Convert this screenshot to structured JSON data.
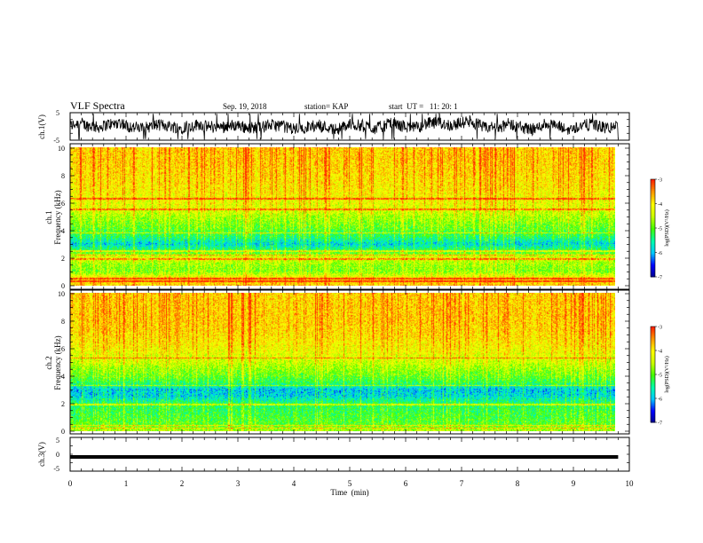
{
  "header": {
    "title": "VLF Spectra",
    "date": "Sep. 19, 2018",
    "station": "station= KAP",
    "start": "start  UT =   11: 20: 1"
  },
  "colors": {
    "background": "#ffffff",
    "axes": "#000000",
    "trace": "#000000",
    "spectrogram_map": [
      "#00008b",
      "#0000ff",
      "#00c8ff",
      "#00ffaa",
      "#44ff00",
      "#ccff00",
      "#ffff00",
      "#ff9900",
      "#ff2200"
    ]
  },
  "chart_data": [
    {
      "type": "line",
      "name": "ch1-waveform",
      "ylabel": "ch.1(V)",
      "xlim": [
        0,
        10
      ],
      "ylim": [
        -5,
        5
      ],
      "yticks": [
        "5",
        "-5"
      ],
      "series": [
        {
          "description_values": "noisy oscillation approximately between -4.5 and 4.5 V across 0–9.8 min"
        }
      ]
    },
    {
      "type": "heatmap",
      "name": "ch1-spectrogram",
      "ylabel": "ch.1 Frequency (kHz)",
      "xlim": [
        0,
        9.8
      ],
      "ylim": [
        0,
        10
      ],
      "yticks": [
        "0",
        "2",
        "4",
        "6",
        "8",
        "10"
      ],
      "colorbar": {
        "label": "log(PSD)(V²/Hz)",
        "range": [
          -7,
          -3
        ],
        "ticks": [
          "-3",
          "-4",
          "-5",
          "-6",
          "-7"
        ]
      },
      "frequency_profile_kHz": [
        {
          "f": 0.0,
          "logpsd": -3.8
        },
        {
          "f": 0.5,
          "logpsd": -4.0
        },
        {
          "f": 1.0,
          "logpsd": -4.8
        },
        {
          "f": 1.5,
          "logpsd": -4.7
        },
        {
          "f": 2.0,
          "logpsd": -4.3
        },
        {
          "f": 2.5,
          "logpsd": -5.2
        },
        {
          "f": 3.0,
          "logpsd": -5.8
        },
        {
          "f": 3.5,
          "logpsd": -5.3
        },
        {
          "f": 4.0,
          "logpsd": -5.0
        },
        {
          "f": 4.5,
          "logpsd": -4.8
        },
        {
          "f": 5.0,
          "logpsd": -4.6
        },
        {
          "f": 5.5,
          "logpsd": -4.3
        },
        {
          "f": 6.0,
          "logpsd": -4.2
        },
        {
          "f": 7.0,
          "logpsd": -4.0
        },
        {
          "f": 8.0,
          "logpsd": -3.9
        },
        {
          "f": 9.0,
          "logpsd": -3.8
        },
        {
          "f": 10.0,
          "logpsd": -3.8
        }
      ],
      "line_frequencies_kHz": [
        0.3,
        0.5,
        1.9,
        2.2,
        2.5,
        3.8,
        5.5,
        6.3
      ]
    },
    {
      "type": "heatmap",
      "name": "ch2-spectrogram",
      "ylabel": "ch.2 Frequency (kHz)",
      "xlim": [
        0,
        9.8
      ],
      "ylim": [
        0,
        10
      ],
      "yticks": [
        "0",
        "2",
        "4",
        "6",
        "8",
        "10"
      ],
      "colorbar": {
        "label": "log(PSD)(V²/Hz)",
        "range": [
          -7,
          -3
        ],
        "ticks": [
          "-3",
          "-4",
          "-5",
          "-6",
          "-7"
        ]
      },
      "frequency_profile_kHz": [
        {
          "f": 0.0,
          "logpsd": -4.6
        },
        {
          "f": 0.5,
          "logpsd": -5.0
        },
        {
          "f": 1.0,
          "logpsd": -5.1
        },
        {
          "f": 1.5,
          "logpsd": -5.2
        },
        {
          "f": 2.0,
          "logpsd": -5.3
        },
        {
          "f": 2.5,
          "logpsd": -5.8
        },
        {
          "f": 3.0,
          "logpsd": -5.9
        },
        {
          "f": 3.5,
          "logpsd": -5.2
        },
        {
          "f": 4.0,
          "logpsd": -4.9
        },
        {
          "f": 4.5,
          "logpsd": -4.7
        },
        {
          "f": 5.0,
          "logpsd": -4.4
        },
        {
          "f": 6.0,
          "logpsd": -4.1
        },
        {
          "f": 7.0,
          "logpsd": -3.9
        },
        {
          "f": 8.0,
          "logpsd": -3.8
        },
        {
          "f": 9.0,
          "logpsd": -3.8
        },
        {
          "f": 10.0,
          "logpsd": -3.8
        }
      ],
      "line_frequencies_kHz": [
        0.2,
        0.4,
        1.9,
        3.3,
        5.3
      ]
    },
    {
      "type": "line",
      "name": "ch3-waveform",
      "ylabel": "ch.3(V)",
      "xlabel": "Time  (min)",
      "xlim": [
        0,
        10
      ],
      "ylim": [
        -5,
        5
      ],
      "yticks": [
        "5",
        "0",
        "-5"
      ],
      "xticks": [
        "0",
        "1",
        "2",
        "3",
        "4",
        "5",
        "6",
        "7",
        "8",
        "9",
        "10"
      ],
      "series": [
        {
          "level_V": -0.8,
          "range_end_min": 9.8
        }
      ]
    }
  ]
}
